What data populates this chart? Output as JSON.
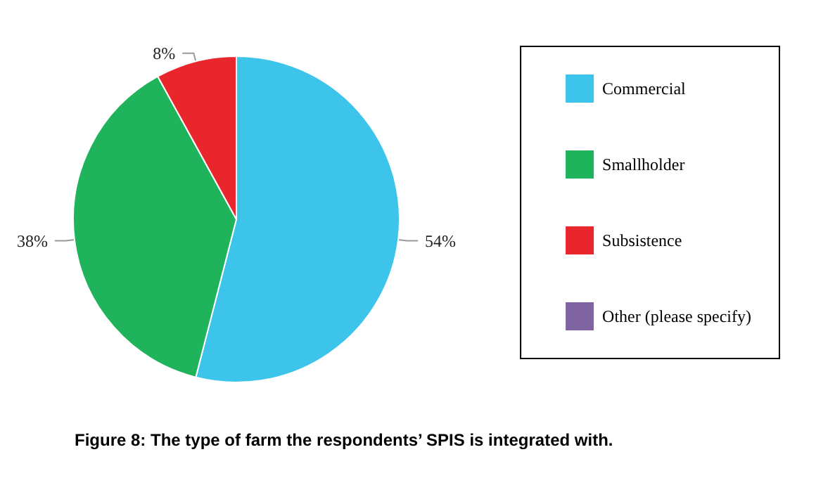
{
  "chart_data": {
    "type": "pie",
    "title": "Figure 8: The type of farm the respondents’ SPIS is integrated with.",
    "categories": [
      "Commercial",
      "Smallholder",
      "Subsistence",
      "Other (please specify)"
    ],
    "values": [
      54,
      38,
      8,
      0
    ],
    "value_labels": [
      "54%",
      "38%",
      "8%",
      null
    ],
    "colors": [
      "#3cc4ea",
      "#1fb45c",
      "#e8262c",
      "#8064a2"
    ],
    "legend": "right"
  }
}
